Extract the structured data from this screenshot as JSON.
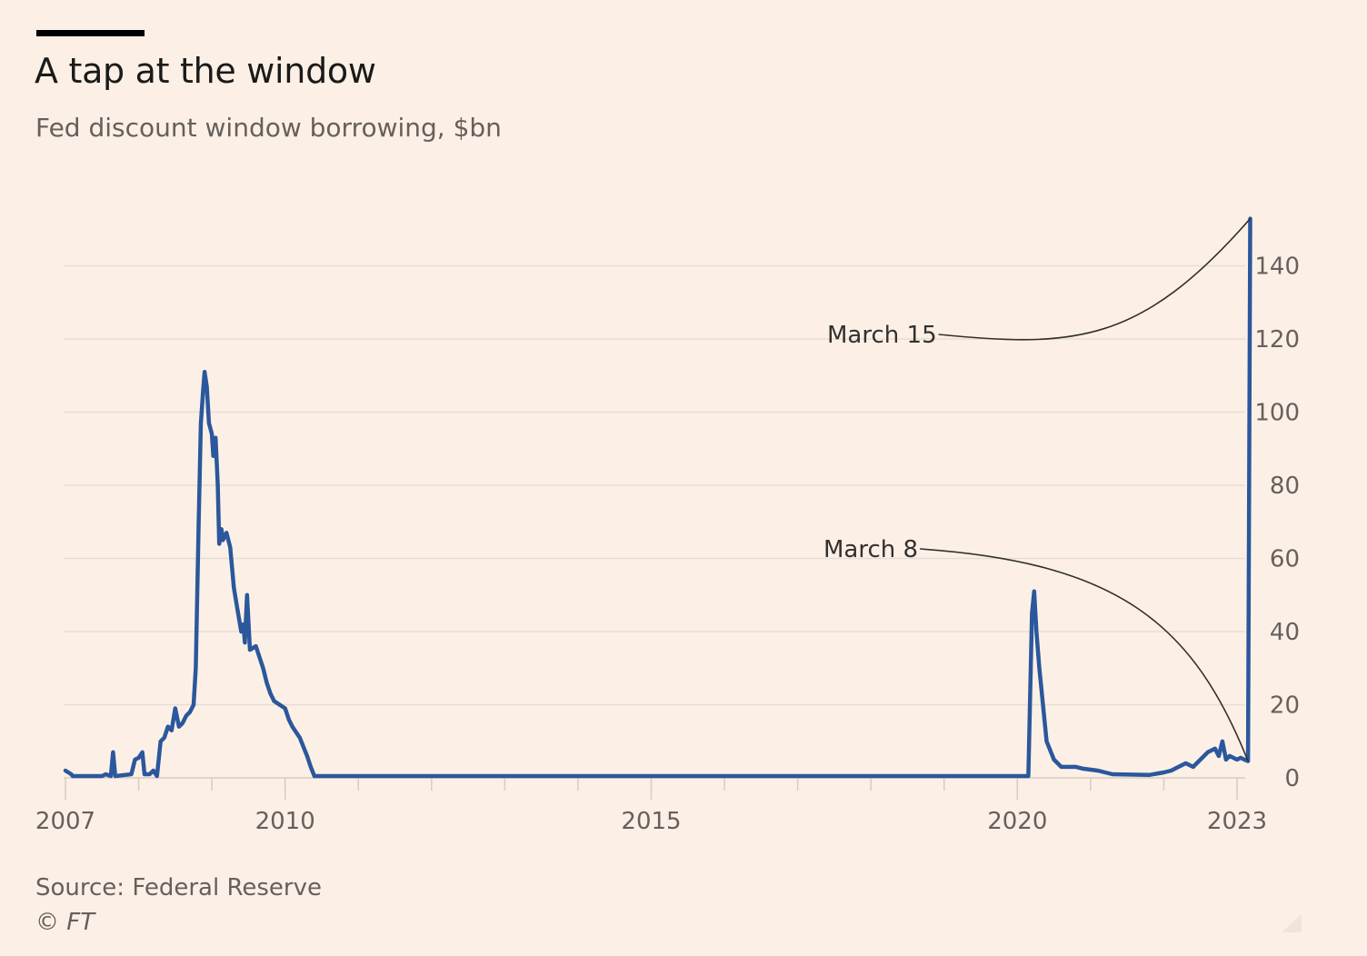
{
  "header": {
    "title": "A tap at the window",
    "subtitle": "Fed discount window borrowing, $bn"
  },
  "footer": {
    "source": "Source: Federal Reserve",
    "credit": "© FT"
  },
  "colors": {
    "background": "#FCF0E6",
    "line": "#2B579C",
    "gridline": "#E8DDD4",
    "text": "#66605C",
    "annotation": "#33302E"
  },
  "chart_data": {
    "type": "line",
    "title": "A tap at the window",
    "subtitle": "Fed discount window borrowing, $bn",
    "xlabel": "",
    "ylabel": "",
    "xlim": [
      2007.0,
      2023.2
    ],
    "ylim": [
      0,
      150
    ],
    "y_axis_side": "right",
    "grid": true,
    "x_ticks": [
      2007,
      2010,
      2015,
      2020,
      2023
    ],
    "y_ticks": [
      0,
      20,
      40,
      60,
      80,
      100,
      120,
      140
    ],
    "series": [
      {
        "name": "",
        "color": "#2B579C",
        "points": [
          [
            2007.0,
            2
          ],
          [
            2007.08,
            1
          ],
          [
            2007.1,
            0.5
          ],
          [
            2007.5,
            0.5
          ],
          [
            2007.55,
            1
          ],
          [
            2007.62,
            0.5
          ],
          [
            2007.65,
            7
          ],
          [
            2007.68,
            0.5
          ],
          [
            2007.9,
            1
          ],
          [
            2007.95,
            5
          ],
          [
            2008.0,
            5.5
          ],
          [
            2008.05,
            7
          ],
          [
            2008.08,
            1
          ],
          [
            2008.15,
            1
          ],
          [
            2008.2,
            2
          ],
          [
            2008.25,
            0.5
          ],
          [
            2008.3,
            10
          ],
          [
            2008.35,
            11
          ],
          [
            2008.4,
            14
          ],
          [
            2008.45,
            13
          ],
          [
            2008.5,
            19
          ],
          [
            2008.55,
            14
          ],
          [
            2008.6,
            15
          ],
          [
            2008.65,
            17
          ],
          [
            2008.7,
            18
          ],
          [
            2008.75,
            20
          ],
          [
            2008.78,
            30
          ],
          [
            2008.8,
            50
          ],
          [
            2008.82,
            70
          ],
          [
            2008.85,
            97
          ],
          [
            2008.88,
            106
          ],
          [
            2008.9,
            111
          ],
          [
            2008.93,
            107
          ],
          [
            2008.96,
            97
          ],
          [
            2009.0,
            94
          ],
          [
            2009.02,
            88
          ],
          [
            2009.05,
            93
          ],
          [
            2009.08,
            80
          ],
          [
            2009.1,
            64
          ],
          [
            2009.13,
            68
          ],
          [
            2009.15,
            65
          ],
          [
            2009.2,
            67
          ],
          [
            2009.25,
            63
          ],
          [
            2009.3,
            52
          ],
          [
            2009.35,
            46
          ],
          [
            2009.4,
            40
          ],
          [
            2009.43,
            42
          ],
          [
            2009.45,
            37
          ],
          [
            2009.48,
            50
          ],
          [
            2009.52,
            35
          ],
          [
            2009.6,
            36
          ],
          [
            2009.65,
            33
          ],
          [
            2009.7,
            30
          ],
          [
            2009.75,
            26
          ],
          [
            2009.8,
            23
          ],
          [
            2009.85,
            21
          ],
          [
            2010.0,
            19
          ],
          [
            2010.05,
            16
          ],
          [
            2010.1,
            14
          ],
          [
            2010.2,
            11
          ],
          [
            2010.3,
            6
          ],
          [
            2010.35,
            3
          ],
          [
            2010.4,
            0.5
          ],
          [
            2011.0,
            0.5
          ],
          [
            2020.15,
            0.5
          ],
          [
            2020.2,
            45
          ],
          [
            2020.23,
            51
          ],
          [
            2020.26,
            40
          ],
          [
            2020.3,
            30
          ],
          [
            2020.35,
            20
          ],
          [
            2020.4,
            10
          ],
          [
            2020.5,
            5
          ],
          [
            2020.6,
            3
          ],
          [
            2020.8,
            3
          ],
          [
            2020.9,
            2.5
          ],
          [
            2021.1,
            2
          ],
          [
            2021.3,
            1
          ],
          [
            2021.8,
            0.8
          ],
          [
            2022.0,
            1.5
          ],
          [
            2022.1,
            2
          ],
          [
            2022.2,
            3
          ],
          [
            2022.3,
            4
          ],
          [
            2022.4,
            3
          ],
          [
            2022.5,
            5
          ],
          [
            2022.6,
            7
          ],
          [
            2022.7,
            8
          ],
          [
            2022.75,
            6
          ],
          [
            2022.8,
            10
          ],
          [
            2022.85,
            5
          ],
          [
            2022.9,
            6
          ],
          [
            2023.0,
            5
          ],
          [
            2023.05,
            5.5
          ],
          [
            2023.1,
            5
          ],
          [
            2023.15,
            4.6
          ],
          [
            2023.18,
            152.9
          ]
        ]
      }
    ],
    "annotations": [
      {
        "label": "March 15",
        "x": 2023.18,
        "y": 152.9
      },
      {
        "label": "March 8",
        "x": 2023.15,
        "y": 4.6
      }
    ]
  }
}
